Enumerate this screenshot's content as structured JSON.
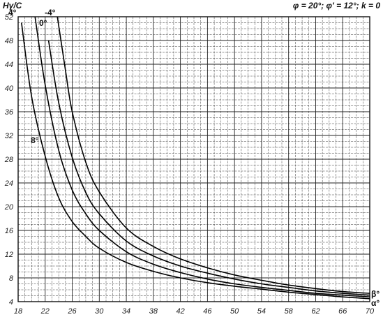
{
  "chart_data": {
    "type": "line",
    "title": "",
    "parameters": "φ = 20°; φ' = 12°; k = 0",
    "xlabel": "α°",
    "xlabel_alt": "β°",
    "ylabel": "Hγ/C",
    "xlim": [
      18,
      70
    ],
    "ylim": [
      4,
      52
    ],
    "xticks": [
      18,
      22,
      26,
      30,
      34,
      38,
      42,
      46,
      50,
      54,
      58,
      62,
      66,
      70
    ],
    "yticks": [
      4,
      8,
      12,
      16,
      20,
      24,
      28,
      32,
      36,
      40,
      44,
      48,
      52
    ],
    "grid": true,
    "series": [
      {
        "name": "8°",
        "x": [
          18.5,
          20,
          22,
          24,
          26,
          28,
          30,
          34,
          38,
          42,
          46,
          50,
          54,
          58,
          62,
          66,
          70
        ],
        "y": [
          51,
          38.5,
          28.5,
          21.5,
          17.5,
          15,
          13,
          10.6,
          9.1,
          8.0,
          7.2,
          6.6,
          6.1,
          5.6,
          5.2,
          4.8,
          4.5
        ]
      },
      {
        "name": "4°",
        "x": [
          20.5,
          22,
          24,
          26,
          28,
          30,
          34,
          38,
          42,
          46,
          50,
          54,
          58,
          62,
          66,
          70
        ],
        "y": [
          52,
          40.5,
          29.5,
          22.8,
          18.8,
          16,
          12.4,
          10.3,
          8.9,
          7.8,
          7.0,
          6.4,
          5.9,
          5.4,
          5.1,
          4.8
        ]
      },
      {
        "name": "0°",
        "x": [
          22.5,
          24,
          26,
          28,
          30,
          34,
          38,
          42,
          46,
          50,
          54,
          58,
          62,
          66,
          70
        ],
        "y": [
          48,
          37.5,
          28.3,
          22.4,
          18.8,
          14.2,
          11.7,
          10.0,
          8.8,
          7.8,
          7.0,
          6.4,
          5.8,
          5.4,
          5.1
        ]
      },
      {
        "name": "-4°",
        "x": [
          23.8,
          25,
          26,
          28,
          30,
          34,
          38,
          42,
          46,
          50,
          54,
          58,
          62,
          66,
          70
        ],
        "y": [
          52,
          43,
          36,
          27.5,
          22.5,
          16.4,
          13.3,
          11.2,
          9.7,
          8.5,
          7.6,
          6.8,
          6.2,
          5.7,
          5.4
        ]
      }
    ]
  }
}
